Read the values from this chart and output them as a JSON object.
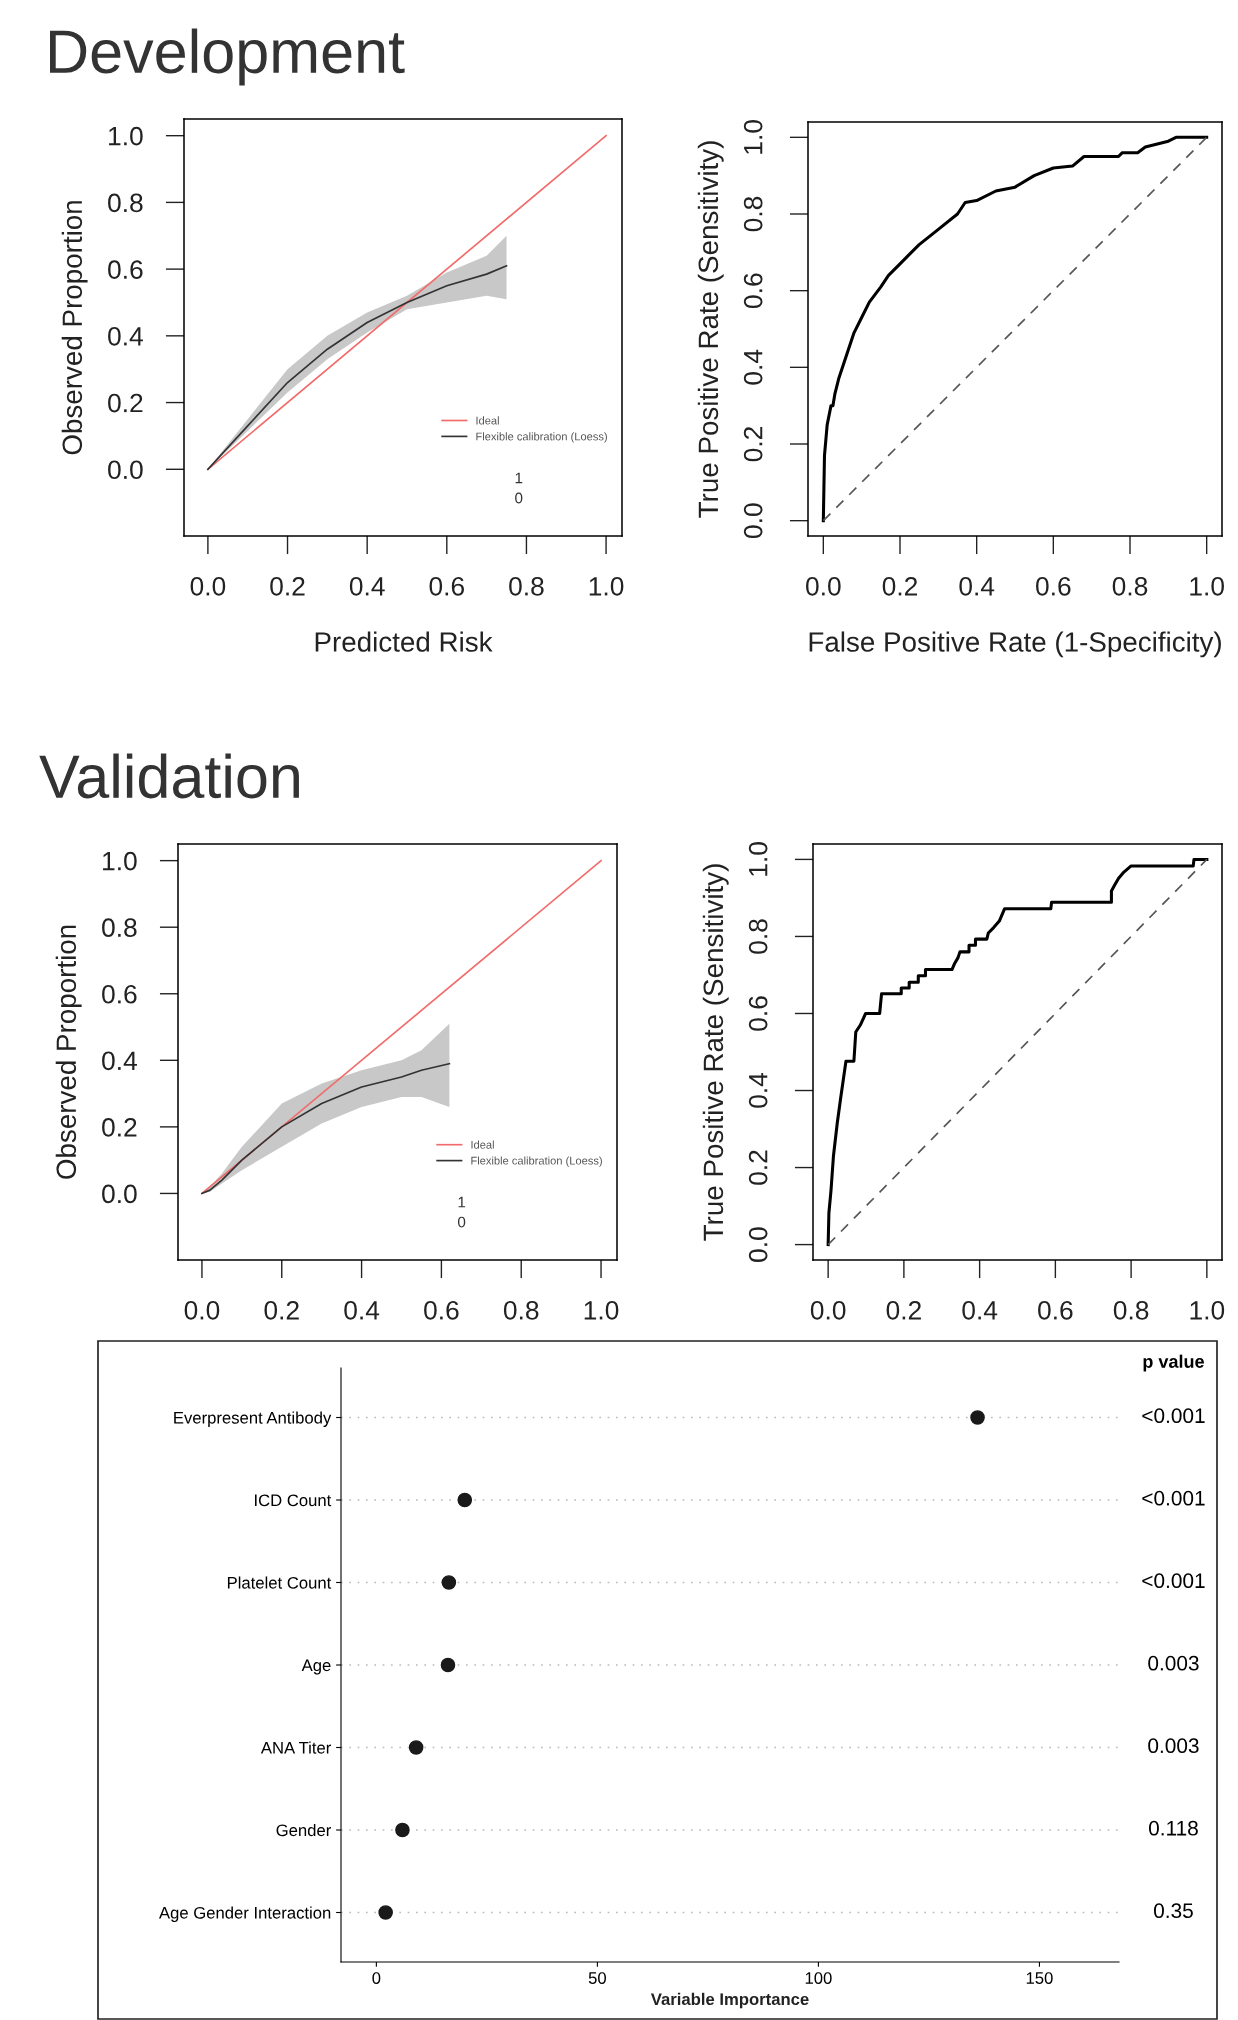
{
  "chart_data": [
    {
      "type": "line",
      "title": "Development",
      "xlabel": "Predicted Risk",
      "ylabel": "Observed Proportion",
      "xlim": [
        -0.06,
        1.04
      ],
      "ylim": [
        -0.2,
        1.05
      ],
      "xticks": [
        {
          "value": 0,
          "label": "0.0"
        },
        {
          "value": 0.2,
          "label": "0.2"
        },
        {
          "value": 0.4,
          "label": "0.4"
        },
        {
          "value": 0.6,
          "label": "0.6"
        },
        {
          "value": 0.8,
          "label": "0.8"
        },
        {
          "value": 1,
          "label": "1.0"
        }
      ],
      "yticks": [
        {
          "value": 0,
          "label": "0.0"
        },
        {
          "value": 0.2,
          "label": "0.2"
        },
        {
          "value": 0.4,
          "label": "0.4"
        },
        {
          "value": 0.6,
          "label": "0.6"
        },
        {
          "value": 0.8,
          "label": "0.8"
        },
        {
          "value": 1,
          "label": "1.0"
        }
      ],
      "legend": "lower right",
      "grid": false,
      "annotations": [
        "1",
        "0"
      ],
      "series": [
        {
          "name": "Ideal",
          "color": "#f26b6b",
          "x": [
            0,
            1
          ],
          "values": [
            0,
            1
          ]
        },
        {
          "name": "Flexible calibration (Loess)",
          "color": "#333333",
          "x": [
            0,
            0.1,
            0.2,
            0.3,
            0.4,
            0.5,
            0.6,
            0.7,
            0.75
          ],
          "values": [
            0,
            0.13,
            0.26,
            0.36,
            0.44,
            0.5,
            0.55,
            0.585,
            0.61
          ],
          "lower": [
            0,
            0.115,
            0.23,
            0.33,
            0.41,
            0.48,
            0.5,
            0.52,
            0.51
          ],
          "upper": [
            0,
            0.15,
            0.3,
            0.4,
            0.47,
            0.52,
            0.59,
            0.64,
            0.7
          ]
        }
      ]
    },
    {
      "type": "line",
      "xlabel": "False Positive Rate (1-Specificity)",
      "ylabel": "True Positive Rate (Sensitivity)",
      "xlim": [
        -0.04,
        1.04
      ],
      "ylim": [
        -0.04,
        1.04
      ],
      "xticks": [
        {
          "value": 0,
          "label": "0.0"
        },
        {
          "value": 0.2,
          "label": "0.2"
        },
        {
          "value": 0.4,
          "label": "0.4"
        },
        {
          "value": 0.6,
          "label": "0.6"
        },
        {
          "value": 0.8,
          "label": "0.8"
        },
        {
          "value": 1,
          "label": "1.0"
        }
      ],
      "yticks": [
        {
          "value": 0,
          "label": "0.0"
        },
        {
          "value": 0.2,
          "label": "0.2"
        },
        {
          "value": 0.4,
          "label": "0.4"
        },
        {
          "value": 0.6,
          "label": "0.6"
        },
        {
          "value": 0.8,
          "label": "0.8"
        },
        {
          "value": 1,
          "label": "1.0"
        }
      ],
      "grid": false,
      "series": [
        {
          "color": "#000000",
          "x": [
            0,
            0.003,
            0.01,
            0.02,
            0.025,
            0.03,
            0.04,
            0.06,
            0.08,
            0.1,
            0.12,
            0.15,
            0.17,
            0.2,
            0.22,
            0.25,
            0.3,
            0.35,
            0.37,
            0.4,
            0.45,
            0.5,
            0.55,
            0.6,
            0.65,
            0.68,
            0.77,
            0.78,
            0.82,
            0.84,
            0.9,
            0.92,
            1
          ],
          "values": [
            0,
            0.17,
            0.25,
            0.3,
            0.3,
            0.33,
            0.37,
            0.43,
            0.49,
            0.53,
            0.57,
            0.61,
            0.64,
            0.67,
            0.69,
            0.72,
            0.76,
            0.8,
            0.83,
            0.835,
            0.86,
            0.87,
            0.9,
            0.92,
            0.925,
            0.95,
            0.95,
            0.96,
            0.96,
            0.975,
            0.99,
            1,
            1
          ]
        },
        {
          "color": "#555555",
          "line_style": "dashed",
          "x": [
            0,
            1
          ],
          "values": [
            0,
            1
          ]
        }
      ]
    },
    {
      "type": "line",
      "title": "Validation",
      "ylabel": "Observed Proportion",
      "xlim": [
        -0.06,
        1.04
      ],
      "ylim": [
        -0.2,
        1.05
      ],
      "xticks": [
        {
          "value": 0,
          "label": "0.0"
        },
        {
          "value": 0.2,
          "label": "0.2"
        },
        {
          "value": 0.4,
          "label": "0.4"
        },
        {
          "value": 0.6,
          "label": "0.6"
        },
        {
          "value": 0.8,
          "label": "0.8"
        },
        {
          "value": 1,
          "label": "1.0"
        }
      ],
      "yticks": [
        {
          "value": 0,
          "label": "0.0"
        },
        {
          "value": 0.2,
          "label": "0.2"
        },
        {
          "value": 0.4,
          "label": "0.4"
        },
        {
          "value": 0.6,
          "label": "0.6"
        },
        {
          "value": 0.8,
          "label": "0.8"
        },
        {
          "value": 1,
          "label": "1.0"
        }
      ],
      "legend": "lower right",
      "grid": false,
      "annotations": [
        "1",
        "0"
      ],
      "series": [
        {
          "name": "Ideal",
          "color": "#f26b6b",
          "x": [
            0,
            1
          ],
          "values": [
            0,
            1
          ]
        },
        {
          "name": "Flexible calibration (Loess)",
          "color": "#333333",
          "x": [
            0,
            0.02,
            0.05,
            0.1,
            0.2,
            0.3,
            0.4,
            0.5,
            0.55,
            0.62
          ],
          "values": [
            0,
            0.01,
            0.04,
            0.1,
            0.2,
            0.27,
            0.32,
            0.35,
            0.37,
            0.39
          ],
          "lower": [
            0,
            0.005,
            0.03,
            0.07,
            0.14,
            0.21,
            0.26,
            0.29,
            0.29,
            0.26
          ],
          "upper": [
            0,
            0.02,
            0.06,
            0.14,
            0.27,
            0.33,
            0.37,
            0.4,
            0.43,
            0.51
          ]
        }
      ]
    },
    {
      "type": "line",
      "ylabel": "True Positive Rate (Sensitivity)",
      "xlim": [
        -0.04,
        1.04
      ],
      "ylim": [
        -0.04,
        1.04
      ],
      "xticks": [
        {
          "value": 0,
          "label": "0.0"
        },
        {
          "value": 0.2,
          "label": "0.2"
        },
        {
          "value": 0.4,
          "label": "0.4"
        },
        {
          "value": 0.6,
          "label": "0.6"
        },
        {
          "value": 0.8,
          "label": "0.8"
        },
        {
          "value": 1,
          "label": "1.0"
        }
      ],
      "yticks": [
        {
          "value": 0,
          "label": "0.0"
        },
        {
          "value": 0.2,
          "label": "0.2"
        },
        {
          "value": 0.4,
          "label": "0.4"
        },
        {
          "value": 0.6,
          "label": "0.6"
        },
        {
          "value": 0.8,
          "label": "0.8"
        },
        {
          "value": 1,
          "label": "1.0"
        }
      ],
      "grid": false,
      "series": [
        {
          "color": "#000000",
          "x": [
            0,
            0.002,
            0.0075,
            0.014,
            0.024,
            0.033,
            0.047,
            0.068,
            0.073,
            0.085,
            0.099,
            0.136,
            0.141,
            0.193,
            0.193,
            0.214,
            0.214,
            0.238,
            0.238,
            0.257,
            0.257,
            0.327,
            0.334,
            0.343,
            0.348,
            0.372,
            0.372,
            0.389,
            0.389,
            0.419,
            0.423,
            0.437,
            0.452,
            0.466,
            0.588,
            0.59,
            0.748,
            0.748,
            0.757,
            0.767,
            0.781,
            0.8,
            0.964,
            0.966,
            1
          ],
          "values": [
            0,
            0.082,
            0.14,
            0.23,
            0.315,
            0.38,
            0.476,
            0.476,
            0.552,
            0.57,
            0.6,
            0.6,
            0.651,
            0.651,
            0.666,
            0.666,
            0.681,
            0.681,
            0.698,
            0.698,
            0.714,
            0.714,
            0.73,
            0.745,
            0.76,
            0.76,
            0.777,
            0.777,
            0.793,
            0.793,
            0.809,
            0.823,
            0.84,
            0.872,
            0.872,
            0.889,
            0.889,
            0.918,
            0.934,
            0.951,
            0.967,
            0.983,
            0.983,
            1,
            1
          ]
        },
        {
          "color": "#555555",
          "line_style": "dashed",
          "x": [
            0,
            1
          ],
          "values": [
            0,
            1
          ]
        }
      ]
    },
    {
      "type": "scatter",
      "xlabel": "Variable Importance",
      "categories": [
        "Everpresent Antibody",
        "ICD Count",
        "Platelet Count",
        "Age",
        "ANA Titer",
        "Gender",
        "Age Gender Interaction"
      ],
      "values": [
        136,
        20,
        16.4,
        16.2,
        9,
        5.9,
        2.1
      ],
      "color": "#1a1a1a",
      "marker": "circle",
      "orientation": "horizontal",
      "xlim": [
        -8,
        168
      ],
      "xticks": [
        0,
        50,
        100,
        150
      ],
      "grid": "y",
      "annotations": [
        "p value",
        "<0.001",
        "<0.001",
        "<0.001",
        "0.003",
        "0.003",
        "0.118",
        "0.35"
      ]
    }
  ]
}
